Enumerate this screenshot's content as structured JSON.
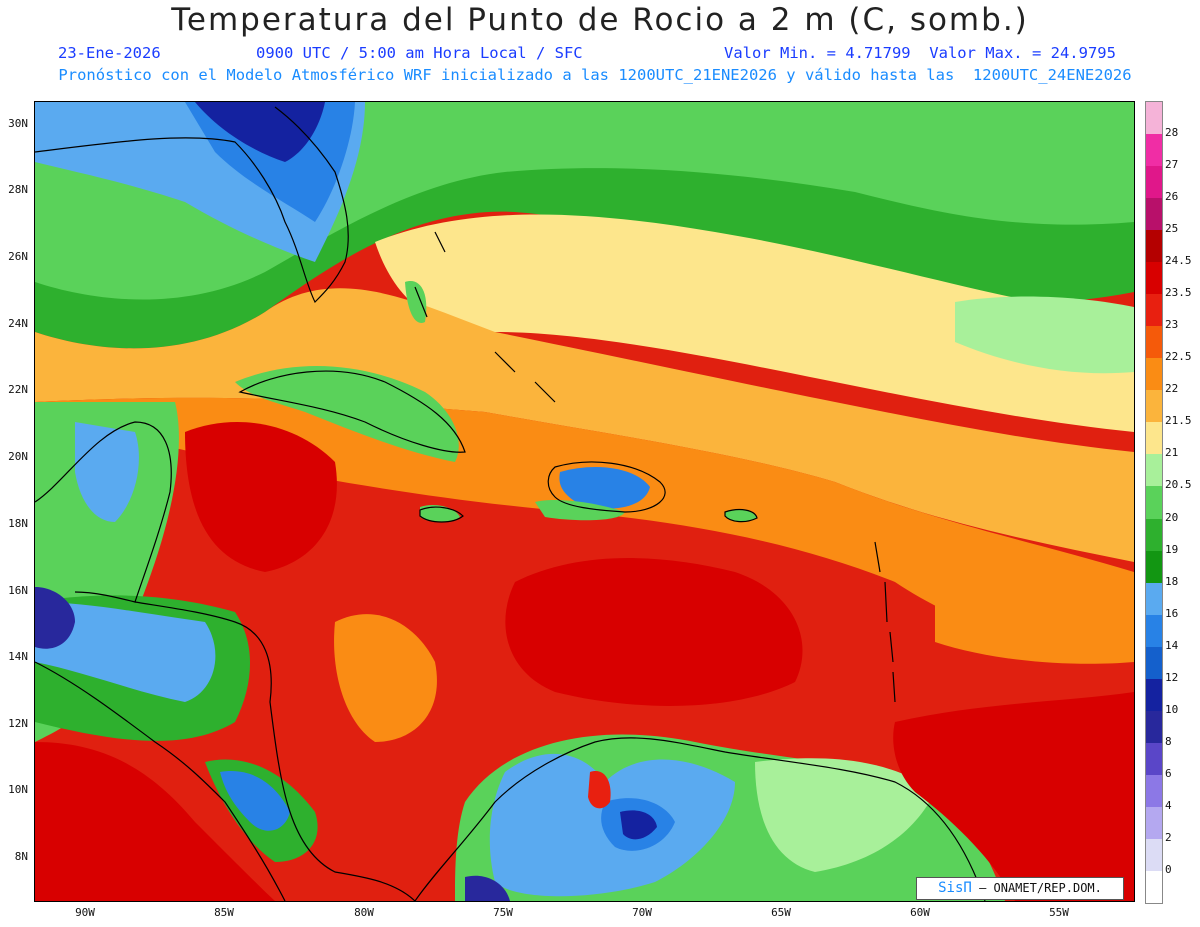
{
  "header": {
    "title": "Temperatura del Punto de Rocio a 2 m (C, somb.)",
    "date": "23-Ene-2026",
    "time": "0900 UTC / 5:00 am Hora Local / SFC",
    "minmax": "Valor Min. = 4.71799  Valor Max. = 24.9795",
    "model": "Pronóstico con el Modelo Atmosférico WRF inicializado a las 1200UTC_21ENE2026 y válido hasta las  1200UTC_24ENE2026"
  },
  "axes": {
    "lat_ticks": [
      "30N",
      "28N",
      "26N",
      "24N",
      "22N",
      "20N",
      "18N",
      "16N",
      "14N",
      "12N",
      "10N",
      "8N"
    ],
    "lon_ticks": [
      "90W",
      "85W",
      "80W",
      "75W",
      "70W",
      "65W",
      "60W",
      "55W"
    ]
  },
  "colorbar": {
    "labels": [
      "28",
      "27",
      "26",
      "25",
      "24.5",
      "23.5",
      "23",
      "22.5",
      "22",
      "21.5",
      "21",
      "20.5",
      "20",
      "19",
      "18",
      "16",
      "14",
      "12",
      "10",
      "8",
      "6",
      "4",
      "2",
      "0"
    ],
    "colors": [
      "#f5b3d8",
      "#f02da5",
      "#e0178a",
      "#b8106a",
      "#b40000",
      "#d80000",
      "#e82010",
      "#f55a0a",
      "#fa8c14",
      "#fbb43c",
      "#fde68c",
      "#a8f09a",
      "#5ad25a",
      "#2eb02e",
      "#129612",
      "#5aaaf0",
      "#2882e6",
      "#1460cc",
      "#1422a0",
      "#28289c",
      "#5a46c8",
      "#8c78e6",
      "#b4a8f0",
      "#dcdcf5",
      "#ffffff"
    ]
  },
  "credit": {
    "logo": "SisΠ",
    "text": "– ONAMET/REP.DOM."
  }
}
